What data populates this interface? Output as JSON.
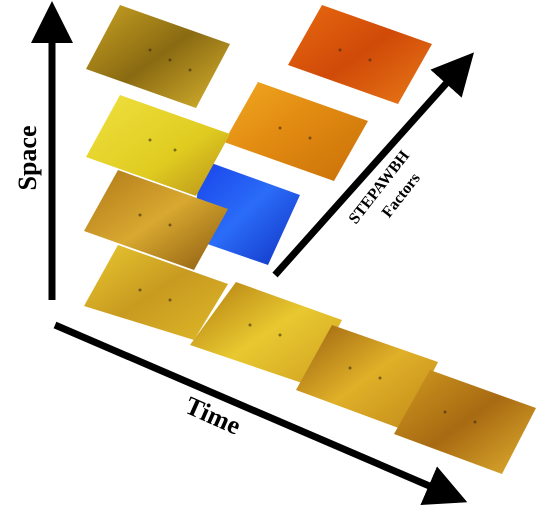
{
  "labels": {
    "space": "Space",
    "time": "Time",
    "factors": [
      "STEPAWBH",
      "Factors"
    ]
  }
}
